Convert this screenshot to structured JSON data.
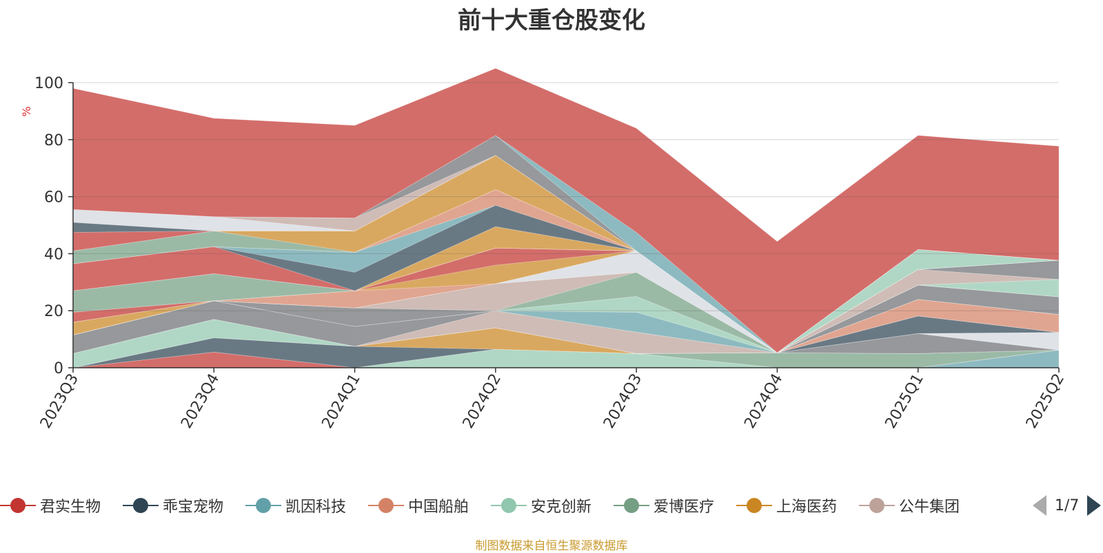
{
  "title": "前十大重仓股变化",
  "source_note": "制图数据来自恒生聚源数据库",
  "pager": {
    "text": "1/7"
  },
  "legend": [
    {
      "name": "君实生物",
      "color": "#c23531"
    },
    {
      "name": "乖宝宠物",
      "color": "#2f4554"
    },
    {
      "name": "凯因科技",
      "color": "#61a0a8"
    },
    {
      "name": "中国船舶",
      "color": "#d48265"
    },
    {
      "name": "安克创新",
      "color": "#91c7ae"
    },
    {
      "name": "爱博医疗",
      "color": "#749f83"
    },
    {
      "name": "上海医药",
      "color": "#ca8622"
    },
    {
      "name": "公牛集团",
      "color": "#bda29a"
    },
    {
      "name": "",
      "color": "#6e7074"
    }
  ],
  "chart_data": {
    "type": "area",
    "stacked": true,
    "title": "前十大重仓股变化",
    "ylabel": "%",
    "ylim": [
      0,
      100
    ],
    "yticks": [
      0,
      20,
      40,
      60,
      80,
      100
    ],
    "categories": [
      "2023Q3",
      "2023Q4",
      "2024Q1",
      "2024Q2",
      "2024Q3",
      "2024Q4",
      "2025Q1",
      "2025Q2"
    ],
    "layers": [
      {
        "color": "#d48265",
        "values": [
          0,
          0,
          0,
          0,
          0,
          0,
          0,
          0
        ]
      },
      {
        "color": "#61a0a8",
        "values": [
          0,
          0,
          0,
          0,
          0,
          0,
          0,
          6.2
        ]
      },
      {
        "color": "#91c7ae",
        "values": [
          0,
          0,
          0,
          6.5,
          5,
          0,
          0,
          0
        ]
      },
      {
        "color": "#c23531",
        "values": [
          0,
          5.5,
          0,
          0,
          0,
          0,
          0,
          0
        ]
      },
      {
        "color": "#749f83",
        "values": [
          0,
          0,
          0,
          0,
          0,
          5.3,
          5,
          0
        ]
      },
      {
        "color": "#2f4554",
        "values": [
          0,
          5,
          7.5,
          0,
          0,
          0,
          0,
          0
        ]
      },
      {
        "color": "#ca8622",
        "values": [
          0,
          0,
          0,
          7.5,
          0,
          0,
          0,
          0
        ]
      },
      {
        "color": "#6e7074",
        "values": [
          0,
          0,
          0,
          0,
          0,
          0,
          7,
          0
        ]
      },
      {
        "color": "#d48265",
        "values": [
          0,
          0,
          0,
          0,
          0,
          0,
          0,
          0
        ]
      },
      {
        "color": "#91c7ae",
        "values": [
          5,
          6.5,
          0,
          0,
          0,
          0,
          0,
          0
        ]
      },
      {
        "color": "#d3d7de",
        "values": [
          0,
          0,
          0,
          0,
          0,
          0,
          0,
          6.2
        ]
      },
      {
        "color": "#2f4554",
        "values": [
          0,
          0,
          0,
          0,
          0,
          0,
          6.2,
          0
        ]
      },
      {
        "color": "#bda29a",
        "values": [
          0,
          0,
          0,
          6,
          7.5,
          0,
          0,
          0
        ]
      },
      {
        "color": "#749f83",
        "values": [
          0,
          0,
          0,
          0,
          0,
          0,
          0,
          0
        ]
      },
      {
        "color": "#6e7074",
        "values": [
          6.5,
          6.5,
          7,
          0,
          0,
          0,
          0,
          0
        ]
      },
      {
        "color": "#61a0a8",
        "values": [
          0,
          0,
          0,
          0,
          7,
          0,
          0,
          0
        ]
      },
      {
        "color": "#d48265",
        "values": [
          0,
          0,
          0,
          0,
          0,
          0,
          5.8,
          6.3
        ]
      },
      {
        "color": "#bda29a",
        "values": [
          0,
          0,
          0,
          0,
          0,
          0,
          0,
          0
        ]
      },
      {
        "color": "#91c7ae",
        "values": [
          0,
          0,
          0,
          0,
          5.5,
          0,
          0,
          0
        ]
      },
      {
        "color": "#6e7074",
        "values": [
          0,
          0,
          6.5,
          0,
          0,
          0,
          0,
          0
        ]
      },
      {
        "color": "#749f83",
        "values": [
          0,
          0,
          0,
          0,
          8.5,
          0,
          0,
          0
        ]
      },
      {
        "color": "#bda29a",
        "values": [
          0,
          0,
          0,
          9.5,
          0,
          0,
          0,
          0
        ]
      },
      {
        "color": "#6e7074",
        "values": [
          0,
          0,
          0,
          0,
          0,
          0,
          5,
          6.2
        ]
      },
      {
        "color": "#ca8622",
        "values": [
          4.5,
          0,
          0,
          0,
          0,
          0,
          0,
          0
        ]
      },
      {
        "color": "#bda29a",
        "values": [
          0,
          0,
          0,
          0,
          0,
          0,
          0,
          0
        ]
      },
      {
        "color": "#2f4554",
        "values": [
          0,
          0,
          0,
          0,
          0,
          0,
          0,
          0
        ]
      },
      {
        "color": "#d3d7de",
        "values": [
          0,
          0,
          0,
          0,
          7.5,
          0,
          0,
          0
        ]
      },
      {
        "color": "#d48265",
        "values": [
          0,
          0,
          6,
          0,
          0,
          0,
          0,
          0
        ]
      },
      {
        "color": "#6e7074",
        "values": [
          0,
          0,
          0,
          0,
          0,
          0,
          0,
          0
        ]
      },
      {
        "color": "#ca8622",
        "values": [
          0,
          0,
          0,
          6.5,
          0,
          0,
          0,
          0
        ]
      },
      {
        "color": "#c23531",
        "values": [
          3.5,
          0,
          0,
          6,
          0,
          0,
          0,
          0
        ]
      },
      {
        "color": "#91c7ae",
        "values": [
          0,
          0,
          0,
          0,
          0,
          0,
          0,
          6.1
        ]
      },
      {
        "color": "#749f83",
        "values": [
          7.5,
          9.5,
          0,
          0,
          0,
          0,
          0,
          0
        ]
      },
      {
        "color": "#bda29a",
        "values": [
          0,
          0,
          0,
          0,
          0,
          0,
          5.5,
          0
        ]
      },
      {
        "color": "#d48265",
        "values": [
          0,
          0,
          0,
          0,
          0,
          0,
          0,
          0
        ]
      },
      {
        "color": "#91c7ae",
        "values": [
          0,
          0,
          0,
          0,
          0,
          0,
          0,
          0
        ]
      },
      {
        "color": "#6e7074",
        "values": [
          0,
          0,
          0,
          0,
          0,
          0,
          0,
          6.7
        ]
      },
      {
        "color": "#ca8622",
        "values": [
          0,
          0,
          0,
          7.5,
          0,
          0,
          0,
          0
        ]
      },
      {
        "color": "#bda29a",
        "values": [
          0,
          0,
          0,
          0,
          0,
          0,
          0,
          0
        ]
      },
      {
        "color": "#c23531",
        "values": [
          9.5,
          9.5,
          0,
          0,
          0,
          0,
          0,
          0
        ]
      },
      {
        "color": "#2f4554",
        "values": [
          0,
          0,
          6.5,
          7.5,
          0,
          0,
          0,
          0
        ]
      },
      {
        "color": "#ca8622",
        "values": [
          0,
          0,
          0,
          0,
          0,
          0,
          0,
          0
        ]
      },
      {
        "color": "#61a0a8",
        "values": [
          0,
          0,
          7,
          0,
          0,
          0,
          0,
          0
        ]
      },
      {
        "color": "#d48265",
        "values": [
          0,
          0,
          0,
          5.5,
          0,
          0,
          0,
          0
        ]
      },
      {
        "color": "#91c7ae",
        "values": [
          0,
          0,
          0,
          0,
          0,
          0,
          7,
          0
        ]
      },
      {
        "color": "#749f83",
        "values": [
          4.5,
          5.5,
          0,
          0,
          0,
          0,
          0,
          0
        ]
      },
      {
        "color": "#ca8622",
        "values": [
          0,
          0,
          7.5,
          12,
          0,
          0,
          0,
          0
        ]
      },
      {
        "color": "#c23531",
        "values": [
          6.5,
          0,
          0,
          0,
          0,
          0,
          0,
          0
        ]
      },
      {
        "color": "#2f4554",
        "values": [
          3.5,
          0,
          0,
          0,
          0,
          0,
          0,
          0
        ]
      },
      {
        "color": "#d3d7de",
        "values": [
          4.5,
          5,
          0,
          0,
          0,
          0,
          0,
          0
        ]
      },
      {
        "color": "#bda29a",
        "values": [
          0,
          0,
          4.5,
          0,
          0,
          0,
          0,
          0
        ]
      },
      {
        "color": "#6e7074",
        "values": [
          0,
          0,
          0,
          7,
          0,
          0,
          0,
          0
        ]
      },
      {
        "color": "#61a0a8",
        "values": [
          0,
          0,
          0,
          0,
          6.5,
          0,
          0,
          0
        ]
      },
      {
        "color": "#c23531",
        "values": [
          42.5,
          34.5,
          32.5,
          23.5,
          36.5,
          39,
          40,
          40
        ]
      }
    ]
  }
}
